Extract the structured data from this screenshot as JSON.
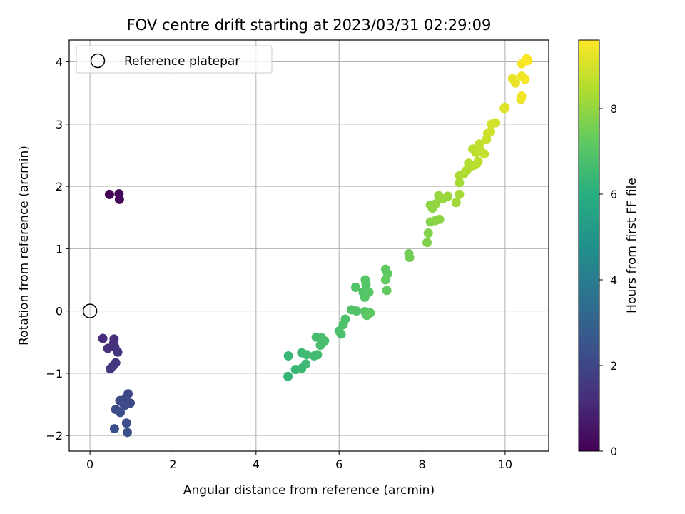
{
  "chart_data": {
    "type": "scatter",
    "title": "FOV centre drift starting at 2023/03/31 02:29:09",
    "xlabel": "Angular distance from reference (arcmin)",
    "ylabel": "Rotation from reference (arcmin)",
    "xlim": [
      -0.5,
      11.05
    ],
    "ylim": [
      -2.25,
      4.35
    ],
    "xticks": [
      0,
      2,
      4,
      6,
      8,
      10
    ],
    "yticks": [
      -2,
      -1,
      0,
      1,
      2,
      3,
      4
    ],
    "grid": true,
    "legend": {
      "placement": "upper-left",
      "entries": [
        "Reference platepar"
      ]
    },
    "reference_point": {
      "x": 0,
      "y": 0,
      "label": "Reference platepar"
    },
    "colorbar": {
      "label": "Hours from first FF file",
      "range": [
        0,
        9.6
      ],
      "ticks": [
        0,
        2,
        4,
        6,
        8
      ],
      "colormap": "viridis"
    },
    "points": [
      {
        "x": 0.47,
        "y": 1.87,
        "c": 0.0
      },
      {
        "x": 0.7,
        "y": 1.88,
        "c": 0.1
      },
      {
        "x": 0.71,
        "y": 1.79,
        "c": 0.15
      },
      {
        "x": 0.31,
        "y": -0.44,
        "c": 1.2
      },
      {
        "x": 0.58,
        "y": -0.45,
        "c": 1.25
      },
      {
        "x": 0.57,
        "y": -0.52,
        "c": 1.3
      },
      {
        "x": 0.43,
        "y": -0.6,
        "c": 1.35
      },
      {
        "x": 0.6,
        "y": -0.58,
        "c": 1.4
      },
      {
        "x": 0.67,
        "y": -0.66,
        "c": 1.45
      },
      {
        "x": 0.62,
        "y": -0.83,
        "c": 1.5
      },
      {
        "x": 0.56,
        "y": -0.88,
        "c": 1.55
      },
      {
        "x": 0.49,
        "y": -0.93,
        "c": 1.6
      },
      {
        "x": 0.92,
        "y": -1.33,
        "c": 2.0
      },
      {
        "x": 0.85,
        "y": -1.41,
        "c": 2.05
      },
      {
        "x": 0.77,
        "y": -1.46,
        "c": 2.1
      },
      {
        "x": 0.72,
        "y": -1.44,
        "c": 2.1
      },
      {
        "x": 0.97,
        "y": -1.48,
        "c": 2.15
      },
      {
        "x": 0.83,
        "y": -1.52,
        "c": 2.2
      },
      {
        "x": 0.62,
        "y": -1.58,
        "c": 2.2
      },
      {
        "x": 0.73,
        "y": -1.63,
        "c": 2.25
      },
      {
        "x": 0.88,
        "y": -1.8,
        "c": 2.3
      },
      {
        "x": 0.59,
        "y": -1.89,
        "c": 2.3
      },
      {
        "x": 0.9,
        "y": -1.95,
        "c": 2.35
      },
      {
        "x": 4.77,
        "y": -1.05,
        "c": 6.3
      },
      {
        "x": 4.78,
        "y": -0.72,
        "c": 6.35
      },
      {
        "x": 4.95,
        "y": -0.94,
        "c": 6.4
      },
      {
        "x": 5.1,
        "y": -0.92,
        "c": 6.45
      },
      {
        "x": 5.2,
        "y": -0.85,
        "c": 6.5
      },
      {
        "x": 5.1,
        "y": -0.67,
        "c": 6.5
      },
      {
        "x": 5.22,
        "y": -0.7,
        "c": 6.55
      },
      {
        "x": 5.4,
        "y": -0.72,
        "c": 6.6
      },
      {
        "x": 5.48,
        "y": -0.7,
        "c": 6.6
      },
      {
        "x": 5.45,
        "y": -0.42,
        "c": 6.65
      },
      {
        "x": 5.55,
        "y": -0.55,
        "c": 6.7
      },
      {
        "x": 5.58,
        "y": -0.43,
        "c": 6.7
      },
      {
        "x": 5.65,
        "y": -0.48,
        "c": 6.75
      },
      {
        "x": 6.0,
        "y": -0.32,
        "c": 6.8
      },
      {
        "x": 6.05,
        "y": -0.37,
        "c": 6.8
      },
      {
        "x": 6.1,
        "y": -0.22,
        "c": 6.85
      },
      {
        "x": 6.15,
        "y": -0.13,
        "c": 6.85
      },
      {
        "x": 6.3,
        "y": 0.02,
        "c": 6.9
      },
      {
        "x": 6.42,
        "y": 0.0,
        "c": 6.9
      },
      {
        "x": 6.4,
        "y": 0.38,
        "c": 6.95
      },
      {
        "x": 6.58,
        "y": 0.3,
        "c": 6.95
      },
      {
        "x": 6.62,
        "y": 0.22,
        "c": 7.0
      },
      {
        "x": 6.65,
        "y": 0.42,
        "c": 7.0
      },
      {
        "x": 6.63,
        "y": 0.5,
        "c": 7.05
      },
      {
        "x": 6.72,
        "y": 0.3,
        "c": 7.05
      },
      {
        "x": 6.62,
        "y": -0.01,
        "c": 7.1
      },
      {
        "x": 6.67,
        "y": -0.07,
        "c": 7.1
      },
      {
        "x": 6.75,
        "y": -0.03,
        "c": 7.15
      },
      {
        "x": 7.12,
        "y": 0.67,
        "c": 7.2
      },
      {
        "x": 7.17,
        "y": 0.6,
        "c": 7.2
      },
      {
        "x": 7.12,
        "y": 0.5,
        "c": 7.25
      },
      {
        "x": 7.15,
        "y": 0.33,
        "c": 7.25
      },
      {
        "x": 7.68,
        "y": 0.92,
        "c": 7.5
      },
      {
        "x": 7.7,
        "y": 0.86,
        "c": 7.5
      },
      {
        "x": 8.12,
        "y": 1.1,
        "c": 7.7
      },
      {
        "x": 8.15,
        "y": 1.25,
        "c": 7.75
      },
      {
        "x": 8.2,
        "y": 1.43,
        "c": 7.8
      },
      {
        "x": 8.32,
        "y": 1.45,
        "c": 7.85
      },
      {
        "x": 8.42,
        "y": 1.47,
        "c": 7.9
      },
      {
        "x": 8.2,
        "y": 1.7,
        "c": 7.9
      },
      {
        "x": 8.25,
        "y": 1.65,
        "c": 7.95
      },
      {
        "x": 8.33,
        "y": 1.72,
        "c": 8.0
      },
      {
        "x": 8.4,
        "y": 1.85,
        "c": 8.05
      },
      {
        "x": 8.5,
        "y": 1.8,
        "c": 8.1
      },
      {
        "x": 8.62,
        "y": 1.84,
        "c": 8.1
      },
      {
        "x": 8.82,
        "y": 1.74,
        "c": 8.2
      },
      {
        "x": 8.9,
        "y": 1.87,
        "c": 8.25
      },
      {
        "x": 8.9,
        "y": 2.06,
        "c": 8.3
      },
      {
        "x": 8.9,
        "y": 2.17,
        "c": 8.35
      },
      {
        "x": 9.0,
        "y": 2.2,
        "c": 8.4
      },
      {
        "x": 9.08,
        "y": 2.26,
        "c": 8.45
      },
      {
        "x": 9.12,
        "y": 2.37,
        "c": 8.5
      },
      {
        "x": 9.22,
        "y": 2.33,
        "c": 8.5
      },
      {
        "x": 9.3,
        "y": 2.35,
        "c": 8.55
      },
      {
        "x": 9.35,
        "y": 2.4,
        "c": 8.6
      },
      {
        "x": 9.22,
        "y": 2.6,
        "c": 8.6
      },
      {
        "x": 9.3,
        "y": 2.54,
        "c": 8.65
      },
      {
        "x": 9.4,
        "y": 2.58,
        "c": 8.7
      },
      {
        "x": 9.38,
        "y": 2.68,
        "c": 8.7
      },
      {
        "x": 9.5,
        "y": 2.52,
        "c": 8.75
      },
      {
        "x": 9.55,
        "y": 2.75,
        "c": 8.8
      },
      {
        "x": 9.58,
        "y": 2.85,
        "c": 8.85
      },
      {
        "x": 9.65,
        "y": 2.88,
        "c": 8.9
      },
      {
        "x": 9.67,
        "y": 3.0,
        "c": 8.95
      },
      {
        "x": 9.77,
        "y": 3.02,
        "c": 9.0
      },
      {
        "x": 9.98,
        "y": 3.25,
        "c": 9.1
      },
      {
        "x": 10.0,
        "y": 3.27,
        "c": 9.15
      },
      {
        "x": 10.18,
        "y": 3.73,
        "c": 9.3
      },
      {
        "x": 10.25,
        "y": 3.66,
        "c": 9.3
      },
      {
        "x": 10.38,
        "y": 3.4,
        "c": 9.35
      },
      {
        "x": 10.4,
        "y": 3.45,
        "c": 9.4
      },
      {
        "x": 10.4,
        "y": 3.77,
        "c": 9.4
      },
      {
        "x": 10.48,
        "y": 3.72,
        "c": 9.45
      },
      {
        "x": 10.4,
        "y": 3.97,
        "c": 9.5
      },
      {
        "x": 10.52,
        "y": 4.05,
        "c": 9.55
      },
      {
        "x": 10.55,
        "y": 4.02,
        "c": 9.6
      }
    ]
  }
}
